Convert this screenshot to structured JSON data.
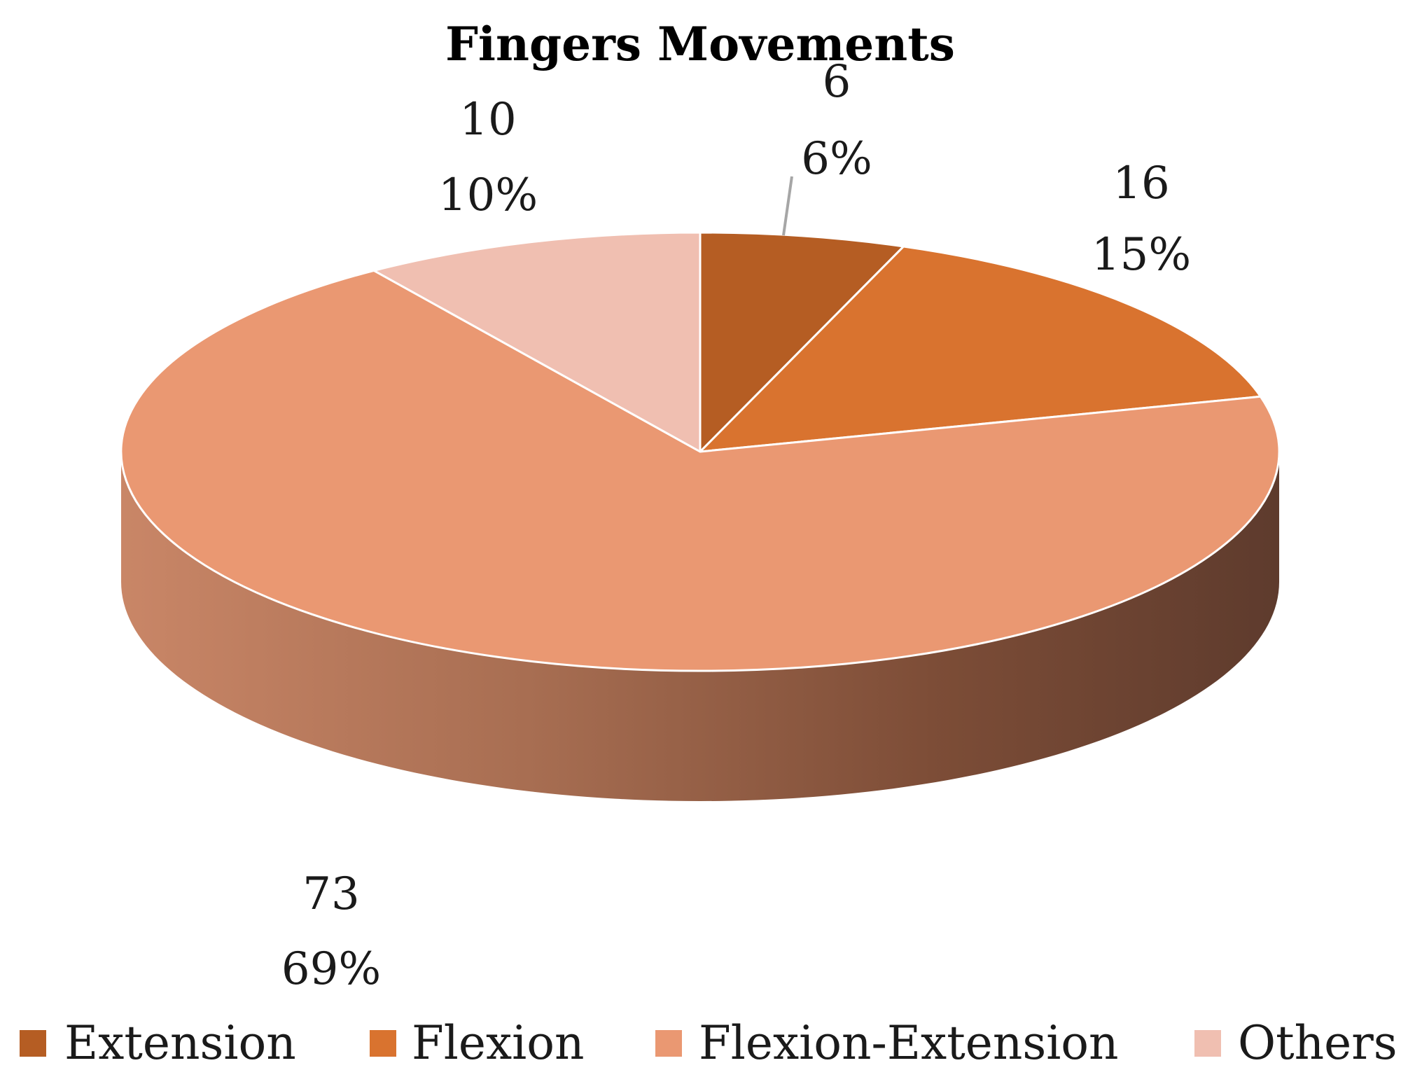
{
  "chart_data": {
    "type": "pie",
    "title": "Fingers Movements",
    "style": "3d",
    "legend_position": "bottom",
    "slices": [
      {
        "name": "Extension",
        "value": 6,
        "percent_label": "6%",
        "color": "#b55d23"
      },
      {
        "name": "Flexion",
        "value": 16,
        "percent_label": "15%",
        "color": "#d9732f"
      },
      {
        "name": "Flexion-Extension",
        "value": 73,
        "percent_label": "69%",
        "color": "#ea9872"
      },
      {
        "name": "Others",
        "value": 10,
        "percent_label": "10%",
        "color": "#f0bfb1"
      }
    ],
    "side_gradient": [
      "#c98667",
      "#a86e52",
      "#7d4d37",
      "#5e3b2d"
    ],
    "leader_line_color": "#a6a6a6"
  }
}
